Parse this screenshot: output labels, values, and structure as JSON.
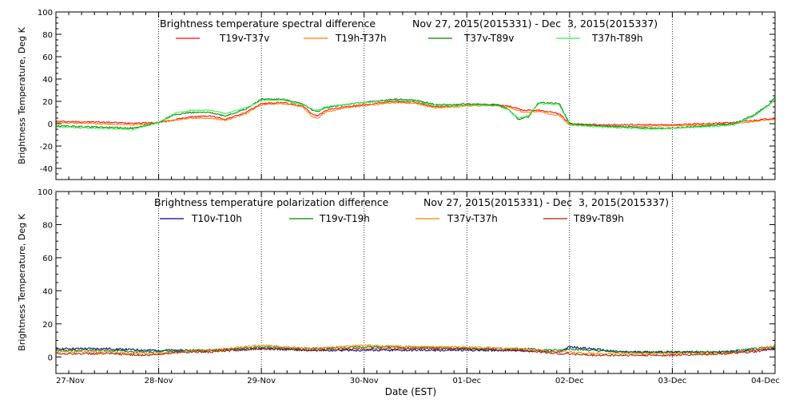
{
  "chart_data": [
    {
      "type": "line",
      "title": "Brightness temperature spectral difference",
      "date_range": "Nov 27, 2015(2015331) - Dec  3, 2015(2015337)",
      "ylabel": "Brightness Temperature, Deg K",
      "xlabel": "",
      "xlim": [
        0,
        7
      ],
      "ylim": [
        -50,
        100
      ],
      "yticks": [
        -40,
        -20,
        0,
        20,
        40,
        60,
        80,
        100
      ],
      "xticks": [
        0,
        1,
        2,
        3,
        4,
        5,
        6,
        7
      ],
      "xtick_labels": [
        "27-Nov",
        "28-Nov",
        "29-Nov",
        "30-Nov",
        "01-Dec",
        "02-Dec",
        "03-Dec",
        "04-Dec"
      ],
      "grid": "vertical dotted at day boundaries",
      "legend_placement": "top, inside plot",
      "series": [
        {
          "name": "T19v-T37v",
          "color": "#ff0000",
          "points": [
            [
              0,
              2
            ],
            [
              0.4,
              1.5
            ],
            [
              0.75,
              0.5
            ],
            [
              1.0,
              1
            ],
            [
              1.3,
              6
            ],
            [
              1.5,
              7
            ],
            [
              1.65,
              4
            ],
            [
              1.85,
              10
            ],
            [
              2.0,
              18
            ],
            [
              2.2,
              19
            ],
            [
              2.4,
              16
            ],
            [
              2.5,
              8
            ],
            [
              2.55,
              7
            ],
            [
              2.62,
              12
            ],
            [
              2.8,
              15
            ],
            [
              3.0,
              17
            ],
            [
              3.3,
              20
            ],
            [
              3.5,
              19
            ],
            [
              3.7,
              15
            ],
            [
              3.9,
              16
            ],
            [
              4.0,
              17
            ],
            [
              4.3,
              17
            ],
            [
              4.4,
              16
            ],
            [
              4.55,
              12
            ],
            [
              4.7,
              12
            ],
            [
              4.9,
              9
            ],
            [
              5.0,
              0
            ],
            [
              5.3,
              -1
            ],
            [
              5.6,
              -1
            ],
            [
              5.8,
              -1
            ],
            [
              6.0,
              -1
            ],
            [
              6.3,
              0
            ],
            [
              6.6,
              1
            ],
            [
              6.8,
              3
            ],
            [
              7.0,
              5
            ]
          ]
        },
        {
          "name": "T19h-T37h",
          "color": "#ff7f00",
          "points": [
            [
              0,
              1
            ],
            [
              0.4,
              0
            ],
            [
              0.75,
              -1
            ],
            [
              1.0,
              1
            ],
            [
              1.3,
              5
            ],
            [
              1.5,
              5
            ],
            [
              1.65,
              3
            ],
            [
              1.85,
              9
            ],
            [
              2.0,
              17
            ],
            [
              2.2,
              18
            ],
            [
              2.4,
              15
            ],
            [
              2.5,
              6
            ],
            [
              2.55,
              5
            ],
            [
              2.62,
              10
            ],
            [
              2.8,
              14
            ],
            [
              3.0,
              16
            ],
            [
              3.3,
              19
            ],
            [
              3.5,
              18
            ],
            [
              3.7,
              14
            ],
            [
              3.9,
              15
            ],
            [
              4.0,
              16
            ],
            [
              4.3,
              16
            ],
            [
              4.4,
              15
            ],
            [
              4.55,
              10
            ],
            [
              4.7,
              11
            ],
            [
              4.9,
              7
            ],
            [
              5.0,
              -1
            ],
            [
              5.3,
              -2
            ],
            [
              5.6,
              -3
            ],
            [
              5.8,
              -2
            ],
            [
              6.0,
              -2
            ],
            [
              6.3,
              -1
            ],
            [
              6.6,
              0
            ],
            [
              6.8,
              2
            ],
            [
              7.0,
              4
            ]
          ]
        },
        {
          "name": "T37v-T89v",
          "color": "#008000",
          "points": [
            [
              0,
              -2
            ],
            [
              0.4,
              -3
            ],
            [
              0.75,
              -4
            ],
            [
              1.0,
              1
            ],
            [
              1.15,
              8
            ],
            [
              1.3,
              10
            ],
            [
              1.5,
              10
            ],
            [
              1.65,
              7
            ],
            [
              1.85,
              13
            ],
            [
              2.0,
              22
            ],
            [
              2.2,
              22
            ],
            [
              2.4,
              18
            ],
            [
              2.5,
              12
            ],
            [
              2.55,
              11
            ],
            [
              2.62,
              14
            ],
            [
              2.8,
              17
            ],
            [
              3.0,
              19
            ],
            [
              3.3,
              22
            ],
            [
              3.5,
              21
            ],
            [
              3.7,
              17
            ],
            [
              3.9,
              17
            ],
            [
              4.0,
              18
            ],
            [
              4.3,
              17
            ],
            [
              4.4,
              13
            ],
            [
              4.5,
              4
            ],
            [
              4.6,
              6
            ],
            [
              4.7,
              19
            ],
            [
              4.9,
              18
            ],
            [
              5.0,
              0
            ],
            [
              5.3,
              -2
            ],
            [
              5.6,
              -3
            ],
            [
              5.8,
              -4
            ],
            [
              6.0,
              -4
            ],
            [
              6.3,
              -2
            ],
            [
              6.6,
              0
            ],
            [
              6.8,
              8
            ],
            [
              6.95,
              18
            ],
            [
              7.0,
              24
            ]
          ]
        },
        {
          "name": "T37h-T89h",
          "color": "#33ee44",
          "points": [
            [
              0,
              -3
            ],
            [
              0.4,
              -4
            ],
            [
              0.75,
              -5
            ],
            [
              1.0,
              1
            ],
            [
              1.15,
              9
            ],
            [
              1.3,
              12
            ],
            [
              1.5,
              12
            ],
            [
              1.65,
              9
            ],
            [
              1.85,
              14
            ],
            [
              2.0,
              21
            ],
            [
              2.2,
              21
            ],
            [
              2.4,
              17
            ],
            [
              2.5,
              13
            ],
            [
              2.55,
              12
            ],
            [
              2.62,
              15
            ],
            [
              2.8,
              17
            ],
            [
              3.0,
              19
            ],
            [
              3.3,
              21
            ],
            [
              3.5,
              20
            ],
            [
              3.7,
              16
            ],
            [
              3.9,
              16
            ],
            [
              4.0,
              17
            ],
            [
              4.3,
              16
            ],
            [
              4.4,
              13
            ],
            [
              4.5,
              5
            ],
            [
              4.6,
              7
            ],
            [
              4.7,
              18
            ],
            [
              4.9,
              17
            ],
            [
              5.0,
              -1
            ],
            [
              5.3,
              -3
            ],
            [
              5.6,
              -4
            ],
            [
              5.8,
              -5
            ],
            [
              6.0,
              -4
            ],
            [
              6.3,
              -3
            ],
            [
              6.6,
              -1
            ],
            [
              6.8,
              7
            ],
            [
              6.95,
              17
            ],
            [
              7.0,
              22
            ]
          ]
        }
      ]
    },
    {
      "type": "line",
      "title": "Brightness temperature polarization difference",
      "date_range": "Nov 27, 2015(2015331) - Dec  3, 2015(2015337)",
      "ylabel": "Brightness Temperature, Deg K",
      "xlabel": "Date (EST)",
      "xlim": [
        0,
        7
      ],
      "ylim": [
        -10,
        100
      ],
      "yticks": [
        0,
        20,
        40,
        60,
        80,
        100
      ],
      "xticks": [
        0,
        1,
        2,
        3,
        4,
        5,
        6,
        7
      ],
      "xtick_labels": [
        "27-Nov",
        "28-Nov",
        "29-Nov",
        "30-Nov",
        "01-Dec",
        "02-Dec",
        "03-Dec",
        "04-Dec"
      ],
      "grid": "vertical dotted at day boundaries",
      "legend_placement": "top, inside plot",
      "series": [
        {
          "name": "T10v-T10h",
          "color": "#00008b",
          "points": [
            [
              0,
              5
            ],
            [
              0.5,
              5
            ],
            [
              0.9,
              4
            ],
            [
              1.2,
              4
            ],
            [
              1.5,
              4
            ],
            [
              2.0,
              5
            ],
            [
              2.5,
              4
            ],
            [
              3.0,
              4
            ],
            [
              3.5,
              4
            ],
            [
              4.0,
              4
            ],
            [
              4.5,
              4
            ],
            [
              4.9,
              3
            ],
            [
              5.0,
              6
            ],
            [
              5.2,
              5
            ],
            [
              5.5,
              3
            ],
            [
              6.0,
              3
            ],
            [
              6.5,
              3
            ],
            [
              6.8,
              4
            ],
            [
              7.0,
              5
            ]
          ]
        },
        {
          "name": "T19v-T19h",
          "color": "#008000",
          "points": [
            [
              0,
              4
            ],
            [
              0.5,
              4
            ],
            [
              0.9,
              3
            ],
            [
              1.2,
              4
            ],
            [
              1.5,
              4
            ],
            [
              2.0,
              6
            ],
            [
              2.5,
              5
            ],
            [
              3.0,
              6
            ],
            [
              3.5,
              6
            ],
            [
              4.0,
              5
            ],
            [
              4.5,
              5
            ],
            [
              4.9,
              4
            ],
            [
              5.0,
              5
            ],
            [
              5.2,
              4
            ],
            [
              5.5,
              3
            ],
            [
              6.0,
              3
            ],
            [
              6.5,
              3
            ],
            [
              6.8,
              5
            ],
            [
              7.0,
              6
            ]
          ]
        },
        {
          "name": "T37v-T37h",
          "color": "#ff7f00",
          "points": [
            [
              0,
              3
            ],
            [
              0.5,
              3
            ],
            [
              0.9,
              2
            ],
            [
              1.2,
              3
            ],
            [
              1.5,
              4
            ],
            [
              2.0,
              7
            ],
            [
              2.5,
              5
            ],
            [
              3.0,
              7
            ],
            [
              3.5,
              6
            ],
            [
              4.0,
              6
            ],
            [
              4.5,
              5
            ],
            [
              4.9,
              3
            ],
            [
              5.0,
              3
            ],
            [
              5.2,
              2
            ],
            [
              5.5,
              2
            ],
            [
              6.0,
              2
            ],
            [
              6.5,
              2
            ],
            [
              6.8,
              4
            ],
            [
              7.0,
              7
            ]
          ]
        },
        {
          "name": "T89v-T89h",
          "color": "#a0200c",
          "points": [
            [
              0,
              2
            ],
            [
              0.5,
              2
            ],
            [
              0.9,
              1
            ],
            [
              1.2,
              3
            ],
            [
              1.5,
              3
            ],
            [
              2.0,
              5
            ],
            [
              2.5,
              4
            ],
            [
              3.0,
              5
            ],
            [
              3.5,
              5
            ],
            [
              4.0,
              5
            ],
            [
              4.5,
              4
            ],
            [
              4.9,
              2
            ],
            [
              5.0,
              2
            ],
            [
              5.2,
              1
            ],
            [
              5.5,
              1
            ],
            [
              6.0,
              1
            ],
            [
              6.5,
              2
            ],
            [
              6.8,
              3
            ],
            [
              7.0,
              5
            ]
          ]
        }
      ]
    }
  ]
}
